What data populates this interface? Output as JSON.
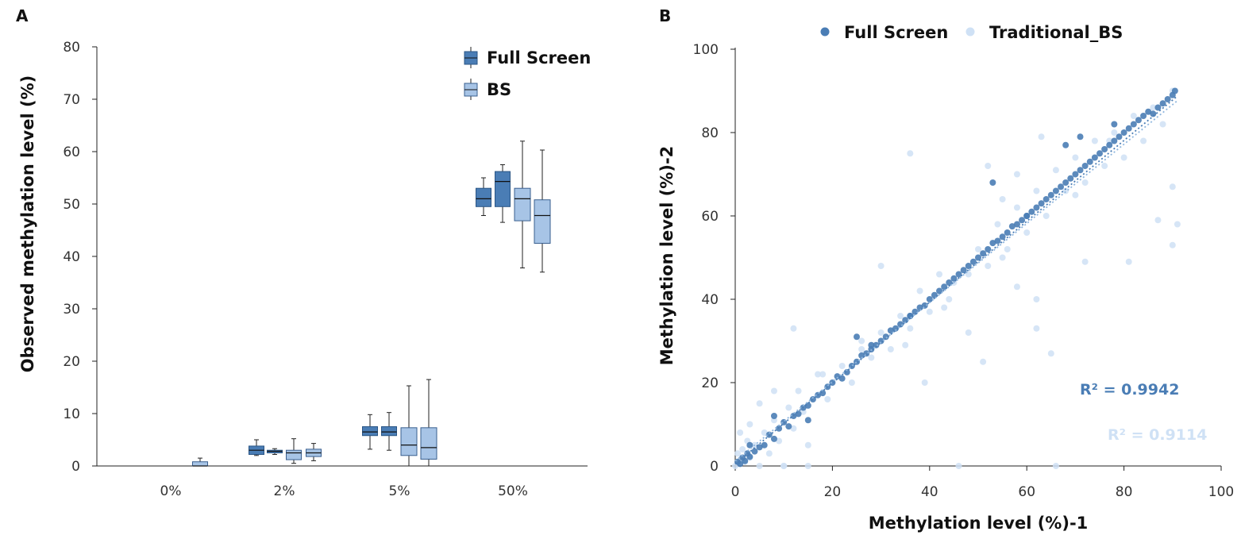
{
  "colors": {
    "full_screen": "#4a7db5",
    "full_screen_edge": "#2a5585",
    "bs": "#a7c4e6",
    "bs_edge": "#3a5f8f",
    "traditional_bs": "#cfe1f5",
    "axis": "#222222"
  },
  "chart_data": [
    {
      "panel": "A",
      "type": "box",
      "panel_label": "A",
      "categories": [
        "0%",
        "2%",
        "5%",
        "50%"
      ],
      "ylabel": "Observed methylation level (%)",
      "xlabel": "",
      "ylim": [
        0,
        80
      ],
      "yticks": [
        0,
        10,
        20,
        30,
        40,
        50,
        60,
        70,
        80
      ],
      "ytick_labels": [
        "0",
        "10",
        "20",
        "30",
        "40",
        "50",
        "60",
        "70",
        "80"
      ],
      "legend": [
        {
          "name": "Full Screen",
          "color_key": "full_screen"
        },
        {
          "name": "BS",
          "color_key": "bs"
        }
      ],
      "legend_position": "top-right",
      "boxes": [
        {
          "category": "0%",
          "series": "BS",
          "min": 0,
          "q1": 0,
          "median": 0,
          "q3": 0.8,
          "max": 1.5
        },
        {
          "category": "2%",
          "series": "Full Screen",
          "min": 2.0,
          "q1": 2.2,
          "median": 3.0,
          "q3": 3.8,
          "max": 5.0
        },
        {
          "category": "2%",
          "series": "Full Screen",
          "min": 2.2,
          "q1": 2.5,
          "median": 2.8,
          "q3": 3.0,
          "max": 3.3
        },
        {
          "category": "2%",
          "series": "BS",
          "min": 0.5,
          "q1": 1.2,
          "median": 2.5,
          "q3": 3.0,
          "max": 5.2
        },
        {
          "category": "2%",
          "series": "BS",
          "min": 1.0,
          "q1": 1.8,
          "median": 2.5,
          "q3": 3.2,
          "max": 4.3
        },
        {
          "category": "5%",
          "series": "Full Screen",
          "min": 3.2,
          "q1": 5.8,
          "median": 6.5,
          "q3": 7.5,
          "max": 9.8
        },
        {
          "category": "5%",
          "series": "Full Screen",
          "min": 3.0,
          "q1": 5.8,
          "median": 6.5,
          "q3": 7.5,
          "max": 10.2
        },
        {
          "category": "5%",
          "series": "BS",
          "min": 0,
          "q1": 2.0,
          "median": 4.0,
          "q3": 7.3,
          "max": 15.3
        },
        {
          "category": "5%",
          "series": "BS",
          "min": 0,
          "q1": 1.3,
          "median": 3.5,
          "q3": 7.3,
          "max": 16.5
        },
        {
          "category": "50%",
          "series": "Full Screen",
          "min": 47.8,
          "q1": 49.5,
          "median": 51.0,
          "q3": 53.0,
          "max": 55.0
        },
        {
          "category": "50%",
          "series": "Full Screen",
          "min": 46.5,
          "q1": 49.5,
          "median": 54.3,
          "q3": 56.2,
          "max": 57.5
        },
        {
          "category": "50%",
          "series": "BS",
          "min": 37.8,
          "q1": 46.8,
          "median": 51.0,
          "q3": 53.0,
          "max": 62.0
        },
        {
          "category": "50%",
          "series": "BS",
          "min": 37.0,
          "q1": 42.5,
          "median": 47.8,
          "q3": 50.8,
          "max": 60.3
        }
      ]
    },
    {
      "panel": "B",
      "type": "scatter",
      "panel_label": "B",
      "xlabel": "Methylation level (%)-1",
      "ylabel": "Methylation level (%)-2",
      "xlim": [
        0,
        100
      ],
      "ylim": [
        0,
        100
      ],
      "xticks": [
        0,
        20,
        40,
        60,
        80,
        100
      ],
      "yticks": [
        0,
        20,
        40,
        60,
        80,
        100
      ],
      "xtick_labels": [
        "0",
        "20",
        "40",
        "60",
        "80",
        "100"
      ],
      "ytick_labels": [
        "0",
        "20",
        "40",
        "60",
        "80",
        "100"
      ],
      "legend_position": "top",
      "series": [
        {
          "name": "Full Screen",
          "color_key": "full_screen",
          "r2_label": "R² = 0.9942",
          "trend": {
            "slope": 0.97,
            "intercept": 0.5
          },
          "points": [
            [
              0.5,
              1
            ],
            [
              1,
              0.5
            ],
            [
              1.5,
              2
            ],
            [
              2,
              1.2
            ],
            [
              2.5,
              3
            ],
            [
              3,
              2.2
            ],
            [
              4,
              3.5
            ],
            [
              5,
              4.5
            ],
            [
              6,
              5
            ],
            [
              7,
              7.5
            ],
            [
              8,
              6.5
            ],
            [
              9,
              9
            ],
            [
              10,
              10.5
            ],
            [
              11,
              9.5
            ],
            [
              12,
              12
            ],
            [
              13,
              12.5
            ],
            [
              14,
              14
            ],
            [
              15,
              14.5
            ],
            [
              16,
              16
            ],
            [
              17,
              17
            ],
            [
              18,
              17.5
            ],
            [
              19,
              19
            ],
            [
              20,
              20
            ],
            [
              21,
              21.5
            ],
            [
              22,
              21
            ],
            [
              23,
              22.5
            ],
            [
              24,
              24
            ],
            [
              25,
              25
            ],
            [
              26,
              26.5
            ],
            [
              27,
              27
            ],
            [
              28,
              28
            ],
            [
              29,
              29
            ],
            [
              30,
              30
            ],
            [
              31,
              31
            ],
            [
              32,
              32.5
            ],
            [
              33,
              33
            ],
            [
              34,
              34
            ],
            [
              35,
              35
            ],
            [
              36,
              36
            ],
            [
              37,
              37
            ],
            [
              38,
              38
            ],
            [
              39,
              38.5
            ],
            [
              40,
              40
            ],
            [
              41,
              41
            ],
            [
              42,
              42
            ],
            [
              43,
              43
            ],
            [
              44,
              44
            ],
            [
              45,
              45
            ],
            [
              46,
              46
            ],
            [
              47,
              47
            ],
            [
              48,
              48
            ],
            [
              49,
              49
            ],
            [
              50,
              50
            ],
            [
              51,
              51
            ],
            [
              52,
              52
            ],
            [
              53,
              53.5
            ],
            [
              54,
              54
            ],
            [
              55,
              55
            ],
            [
              56,
              56
            ],
            [
              57,
              57.5
            ],
            [
              58,
              58
            ],
            [
              59,
              59
            ],
            [
              60,
              60
            ],
            [
              61,
              61
            ],
            [
              62,
              62
            ],
            [
              63,
              63
            ],
            [
              64,
              64
            ],
            [
              65,
              65
            ],
            [
              66,
              66
            ],
            [
              67,
              67
            ],
            [
              68,
              68
            ],
            [
              69,
              69
            ],
            [
              70,
              70
            ],
            [
              71,
              71
            ],
            [
              72,
              72
            ],
            [
              73,
              73
            ],
            [
              74,
              74
            ],
            [
              75,
              75
            ],
            [
              76,
              76
            ],
            [
              77,
              77
            ],
            [
              78,
              78
            ],
            [
              79,
              79
            ],
            [
              80,
              80
            ],
            [
              81,
              81
            ],
            [
              82,
              82
            ],
            [
              83,
              83
            ],
            [
              84,
              84
            ],
            [
              85,
              85
            ],
            [
              86,
              84.5
            ],
            [
              87,
              86
            ],
            [
              88,
              87
            ],
            [
              89,
              88
            ],
            [
              90,
              89
            ],
            [
              90.5,
              90
            ],
            [
              53,
              68
            ],
            [
              71,
              79
            ],
            [
              78,
              82
            ],
            [
              68,
              77
            ],
            [
              60,
              60
            ],
            [
              25,
              31
            ],
            [
              28,
              29
            ],
            [
              36,
              36
            ],
            [
              15,
              11
            ],
            [
              8,
              12
            ],
            [
              3,
              5
            ]
          ]
        },
        {
          "name": "Traditional_BS",
          "color_key": "traditional_bs",
          "r2_label": "R² = 0.9114",
          "trend": {
            "slope": 0.95,
            "intercept": 1.2
          },
          "points": [
            [
              0,
              0
            ],
            [
              0.5,
              3
            ],
            [
              1,
              8
            ],
            [
              1.5,
              4
            ],
            [
              2,
              1
            ],
            [
              2.5,
              6
            ],
            [
              3,
              2
            ],
            [
              3,
              10
            ],
            [
              4,
              5
            ],
            [
              5,
              0
            ],
            [
              6,
              8
            ],
            [
              7,
              3
            ],
            [
              8,
              11
            ],
            [
              9,
              6
            ],
            [
              10,
              0
            ],
            [
              11,
              14
            ],
            [
              12,
              9
            ],
            [
              13,
              18
            ],
            [
              14,
              13
            ],
            [
              15,
              0
            ],
            [
              17,
              22
            ],
            [
              19,
              16
            ],
            [
              22,
              24
            ],
            [
              24,
              20
            ],
            [
              26,
              30
            ],
            [
              28,
              26
            ],
            [
              30,
              32
            ],
            [
              32,
              28
            ],
            [
              34,
              36
            ],
            [
              36,
              33
            ],
            [
              38,
              42
            ],
            [
              40,
              37
            ],
            [
              42,
              46
            ],
            [
              44,
              40
            ],
            [
              46,
              0
            ],
            [
              48,
              46
            ],
            [
              50,
              52
            ],
            [
              52,
              48
            ],
            [
              54,
              58
            ],
            [
              56,
              52
            ],
            [
              58,
              62
            ],
            [
              60,
              56
            ],
            [
              62,
              66
            ],
            [
              64,
              60
            ],
            [
              66,
              0
            ],
            [
              68,
              66
            ],
            [
              70,
              74
            ],
            [
              72,
              68
            ],
            [
              74,
              78
            ],
            [
              76,
              72
            ],
            [
              78,
              80
            ],
            [
              80,
              74
            ],
            [
              82,
              84
            ],
            [
              84,
              78
            ],
            [
              86,
              86
            ],
            [
              88,
              82
            ],
            [
              90,
              90
            ],
            [
              36,
              75
            ],
            [
              52,
              72
            ],
            [
              63,
              79
            ],
            [
              65,
              27
            ],
            [
              51,
              25
            ],
            [
              43,
              38
            ],
            [
              39,
              20
            ],
            [
              48,
              32
            ],
            [
              62,
              33
            ],
            [
              72,
              49
            ],
            [
              81,
              49
            ],
            [
              87,
              59
            ],
            [
              90,
              53
            ],
            [
              91,
              58
            ],
            [
              90,
              67
            ],
            [
              77,
              78
            ],
            [
              55,
              50
            ],
            [
              58,
              43
            ],
            [
              62,
              40
            ],
            [
              45,
              44
            ],
            [
              30,
              48
            ],
            [
              12,
              33
            ],
            [
              18,
              22
            ],
            [
              8,
              18
            ],
            [
              5,
              15
            ],
            [
              66,
              71
            ],
            [
              70,
              65
            ],
            [
              55,
              64
            ],
            [
              58,
              70
            ],
            [
              35,
              29
            ],
            [
              26,
              28
            ],
            [
              15,
              5
            ],
            [
              10,
              0
            ]
          ]
        }
      ]
    }
  ]
}
